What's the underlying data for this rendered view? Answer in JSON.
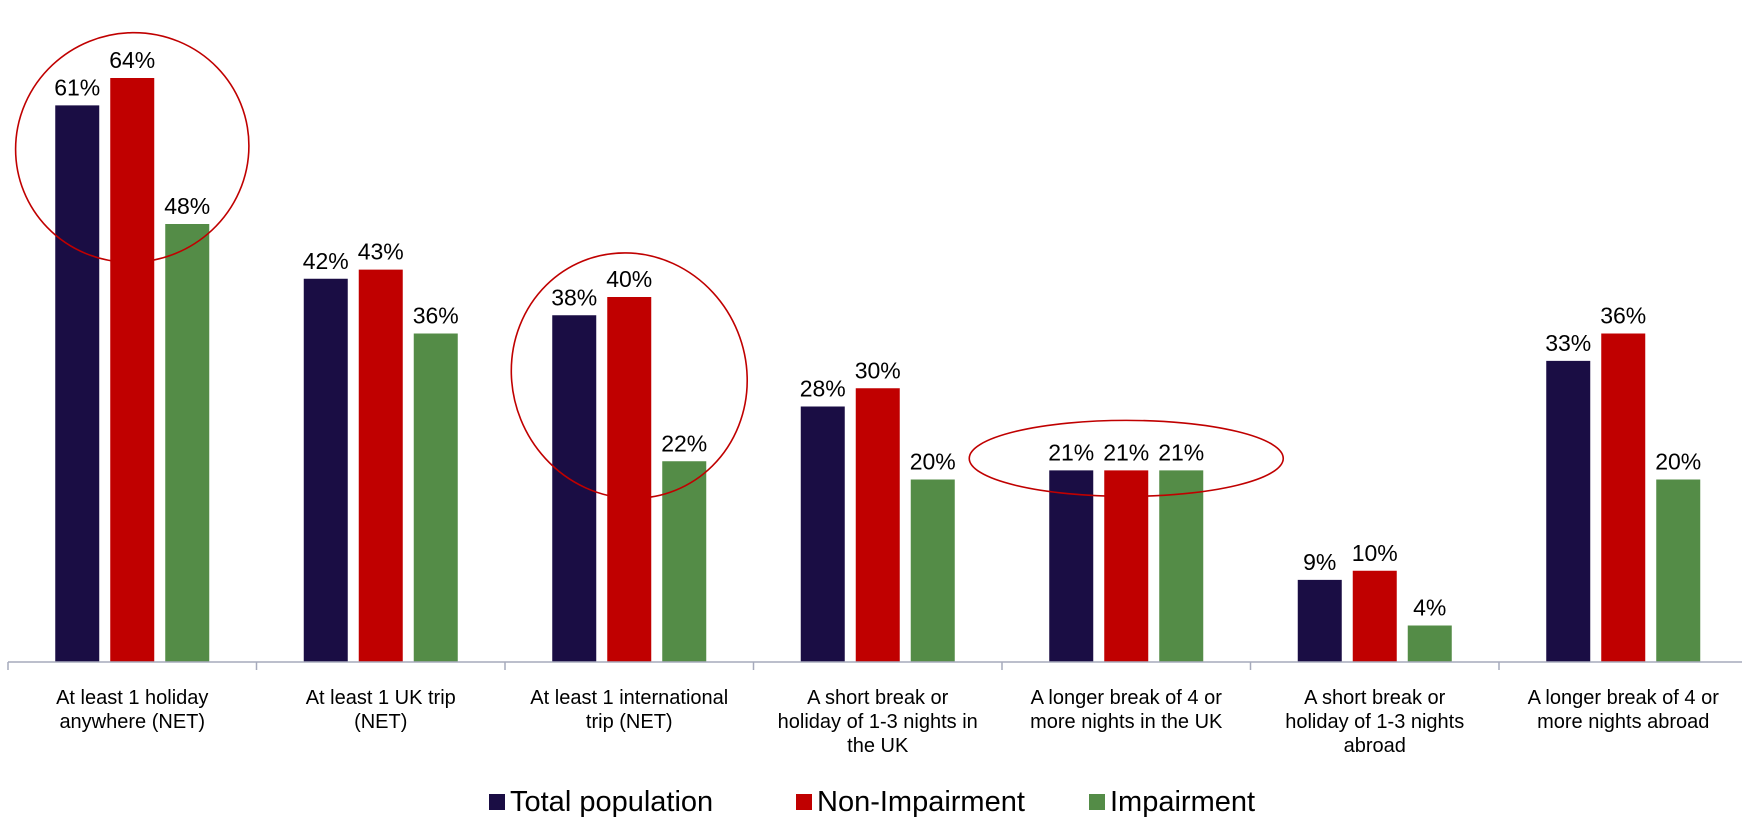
{
  "chart_data": {
    "type": "bar",
    "categories": [
      [
        "At least 1 holiday",
        "anywhere (NET)"
      ],
      [
        "At least 1 UK trip",
        "(NET)"
      ],
      [
        "At least 1 international",
        "trip (NET)"
      ],
      [
        "A short break or",
        "holiday of 1-3 nights in",
        "the UK"
      ],
      [
        "A longer break of 4 or",
        "more nights in the UK"
      ],
      [
        "A short break or",
        "holiday of 1-3 nights",
        "abroad"
      ],
      [
        "A longer break of 4 or",
        "more nights abroad"
      ]
    ],
    "series": [
      {
        "name": "Total population",
        "color": "#1a0d44",
        "values": [
          61,
          42,
          38,
          28,
          21,
          9,
          33
        ]
      },
      {
        "name": "Non-Impairment",
        "color": "#c00000",
        "values": [
          64,
          43,
          40,
          30,
          21,
          10,
          36
        ]
      },
      {
        "name": "Impairment",
        "color": "#548c47",
        "values": [
          48,
          36,
          22,
          20,
          21,
          4,
          20
        ]
      }
    ],
    "value_suffix": "%",
    "ylim": [
      0,
      64
    ],
    "grid": false,
    "legend_position": "bottom",
    "highlighted_categories": [
      0,
      2,
      4
    ],
    "highlight_color": "#c00000"
  }
}
